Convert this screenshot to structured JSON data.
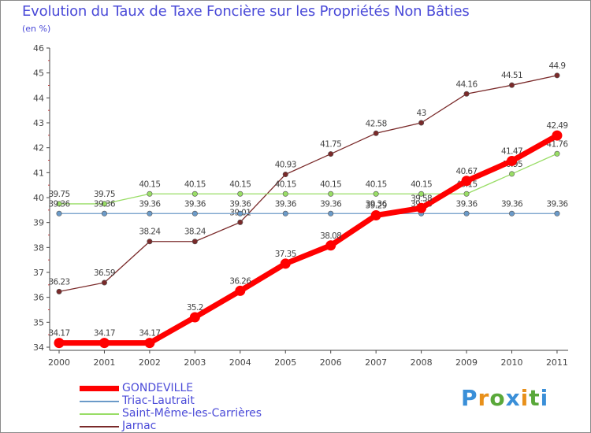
{
  "header": {
    "title": "Evolution du Taux de Taxe Foncière sur les Propriétés Non Bâties",
    "subtitle": "(en %)"
  },
  "legend": [
    {
      "label": "GONDEVILLE",
      "color": "#ff0000"
    },
    {
      "label": "Triac-Lautrait",
      "color": "#6b9ac8"
    },
    {
      "label": "Saint-Même-les-Carrières",
      "color": "#99dd66"
    },
    {
      "label": "Jarnac",
      "color": "#7a2a2a"
    }
  ],
  "logo": {
    "letters": [
      "P",
      "r",
      "o",
      "x",
      "i",
      "t",
      "i"
    ],
    "colors": [
      "#3a8fd8",
      "#e8901a",
      "#5aa83a",
      "#3a8fd8",
      "#e8901a",
      "#5aa83a",
      "#3a8fd8"
    ]
  },
  "chart_data": {
    "type": "line",
    "title": "Evolution du Taux de Taxe Foncière sur les Propriétés Non Bâties",
    "ylabel": "(en %)",
    "xlabel": "",
    "ylim": [
      34,
      46
    ],
    "yticks": [
      34,
      35,
      36,
      37,
      38,
      39,
      40,
      41,
      42,
      43,
      44,
      45,
      46
    ],
    "categories": [
      "2000",
      "2001",
      "2002",
      "2003",
      "2004",
      "2005",
      "2006",
      "2007",
      "2008",
      "2009",
      "2010",
      "2011"
    ],
    "grid": false,
    "series": [
      {
        "name": "Jarnac",
        "color": "#7a2a2a",
        "values": [
          36.23,
          36.59,
          38.24,
          38.24,
          39.01,
          40.93,
          41.75,
          42.58,
          43,
          44.16,
          44.51,
          44.9
        ],
        "labels": [
          "36.23",
          "36.59",
          "38.24",
          "38.24",
          "39.01",
          "40.93",
          "41.75",
          "42.58",
          "43",
          "44.16",
          "44.51",
          "44.9"
        ]
      },
      {
        "name": "Saint-Même-les-Carrières",
        "color": "#99dd66",
        "values": [
          39.75,
          39.75,
          40.15,
          40.15,
          40.15,
          40.15,
          40.15,
          40.15,
          40.15,
          40.15,
          40.95,
          41.76
        ],
        "labels": [
          "39.75",
          "39.75",
          "40.15",
          "40.15",
          "40.15",
          "40.15",
          "40.15",
          "40.15",
          "40.15",
          "40.15",
          "40.95",
          "41.76"
        ]
      },
      {
        "name": "Triac-Lautrait",
        "color": "#6b9ac8",
        "values": [
          39.36,
          39.36,
          39.36,
          39.36,
          39.36,
          39.36,
          39.36,
          39.36,
          39.36,
          39.36,
          39.36,
          39.36
        ],
        "labels": [
          "39.36",
          "39.36",
          "39.36",
          "39.36",
          "39.36",
          "39.36",
          "39.36",
          "39.36",
          "39.36",
          "39.36",
          "39.36",
          "39.36"
        ]
      },
      {
        "name": "GONDEVILLE",
        "color": "#ff0000",
        "values": [
          34.17,
          34.17,
          34.17,
          35.2,
          36.26,
          37.35,
          38.08,
          39.29,
          39.58,
          40.67,
          41.47,
          42.49
        ],
        "labels": [
          "34.17",
          "34.17",
          "34.17",
          "35.2",
          "36.26",
          "37.35",
          "38.08",
          "39.29",
          "39.58",
          "40.67",
          "41.47",
          "42.49"
        ]
      }
    ]
  }
}
